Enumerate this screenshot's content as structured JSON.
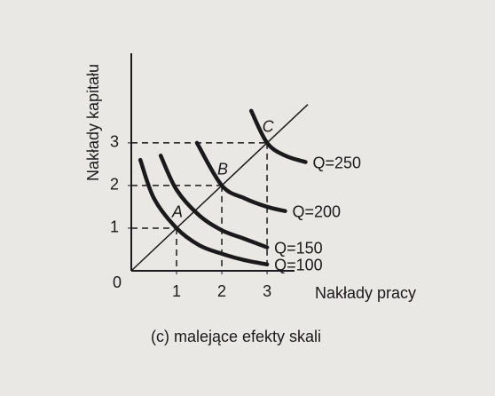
{
  "chart_data": {
    "type": "line",
    "y_label": "Nakłady kapitału",
    "x_label": "Nakłady pracy",
    "caption": "(c) malejące efekty skali",
    "xlim": [
      0,
      3.9
    ],
    "ylim": [
      0,
      5.1
    ],
    "xticks": [
      0,
      1,
      2,
      3
    ],
    "yticks": [
      1,
      2,
      3
    ],
    "grid": false,
    "series": [
      {
        "name": "Q=100",
        "color": "#1a1a1a",
        "x": [
          0.2,
          0.5,
          1,
          1.5,
          2,
          2.5,
          3
        ],
        "values": [
          2.6,
          1.7,
          1,
          0.6,
          0.4,
          0.25,
          0.15
        ]
      },
      {
        "name": "Q=150",
        "color": "#1a1a1a",
        "x": [
          0.65,
          1,
          1.5,
          2,
          2.5,
          3
        ],
        "values": [
          2.7,
          1.9,
          1.3,
          0.95,
          0.75,
          0.55
        ]
      },
      {
        "name": "Q=200",
        "color": "#1a1a1a",
        "x": [
          1.45,
          2,
          2.5,
          3,
          3.4
        ],
        "values": [
          3,
          2,
          1.7,
          1.5,
          1.4
        ]
      },
      {
        "name": "Q=250",
        "color": "#1a1a1a",
        "x": [
          2.65,
          3,
          3.4,
          3.85
        ],
        "values": [
          3.75,
          3,
          2.7,
          2.55
        ]
      }
    ],
    "points": [
      {
        "label": "A",
        "x": 1,
        "y": 1
      },
      {
        "label": "B",
        "x": 2,
        "y": 2
      },
      {
        "label": "C",
        "x": 3,
        "y": 3
      }
    ]
  }
}
